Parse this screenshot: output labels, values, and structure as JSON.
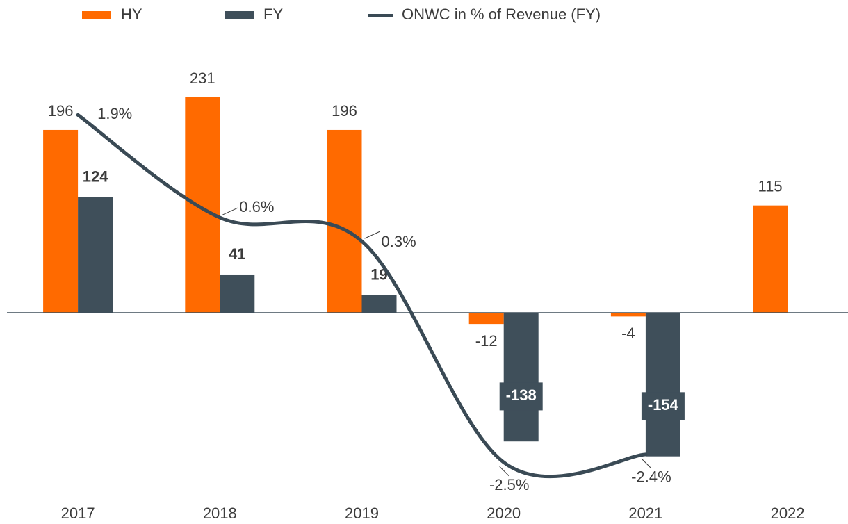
{
  "chart_data": {
    "type": "bar",
    "categories": [
      "2017",
      "2018",
      "2019",
      "2020",
      "2021",
      "2022"
    ],
    "series": [
      {
        "name": "HY",
        "color": "#ff6a00",
        "values": [
          196,
          231,
          196,
          -12,
          -4,
          115
        ]
      },
      {
        "name": "FY",
        "color": "#3f4f5a",
        "values": [
          124,
          41,
          19,
          -138,
          -154,
          null
        ]
      },
      {
        "name": "ONWC in % of Revenue (FY)",
        "type": "line",
        "axis": "y2",
        "color": "#3a4a55",
        "values": [
          1.9,
          0.6,
          0.3,
          -2.5,
          -2.4,
          null
        ],
        "value_labels": [
          "1.9%",
          "0.6%",
          "0.3%",
          "-2.5%",
          "-2.4%",
          null
        ]
      }
    ],
    "ylim": [
      -190,
      290
    ],
    "y2lim": [
      -2.85,
      2.82
    ],
    "grid": false,
    "legend": "top"
  }
}
